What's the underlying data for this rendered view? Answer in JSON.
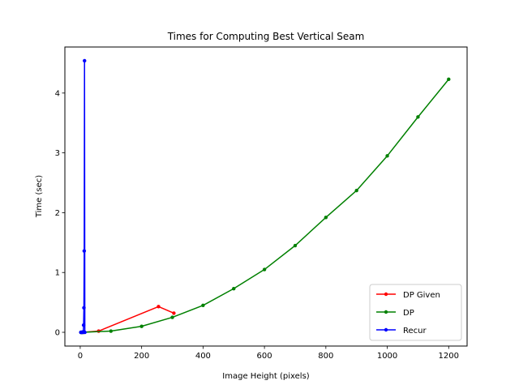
{
  "chart_data": {
    "type": "line",
    "title": "Times for Computing Best Vertical Seam",
    "xlabel": "Image Height (pixels)",
    "ylabel": "Time (sec)",
    "xlim": [
      -50,
      1260
    ],
    "ylim": [
      -0.23,
      4.77
    ],
    "xticks": [
      0,
      200,
      400,
      600,
      800,
      1000,
      1200
    ],
    "yticks": [
      0,
      1,
      2,
      3,
      4
    ],
    "grid": false,
    "legend_position": "lower-right",
    "series": [
      {
        "name": "DP Given",
        "color": "#ff0000",
        "x": [
          5,
          10,
          60,
          255,
          305
        ],
        "y": [
          0.0,
          0.0,
          0.02,
          0.43,
          0.32
        ]
      },
      {
        "name": "DP",
        "color": "#008000",
        "x": [
          2,
          5,
          10,
          100,
          200,
          300,
          400,
          500,
          600,
          700,
          800,
          900,
          1000,
          1100,
          1200
        ],
        "y": [
          0.0,
          0.0,
          0.0,
          0.02,
          0.1,
          0.25,
          0.45,
          0.73,
          1.05,
          1.45,
          1.92,
          2.37,
          2.95,
          3.6,
          4.23
        ]
      },
      {
        "name": "Recur",
        "color": "#0000ff",
        "x": [
          2,
          4,
          6,
          8,
          10,
          11,
          12,
          13,
          14,
          15
        ],
        "y": [
          0.0,
          0.0,
          0.0,
          0.0,
          0.01,
          0.12,
          0.41,
          1.36,
          4.54,
          0.0
        ]
      }
    ]
  }
}
